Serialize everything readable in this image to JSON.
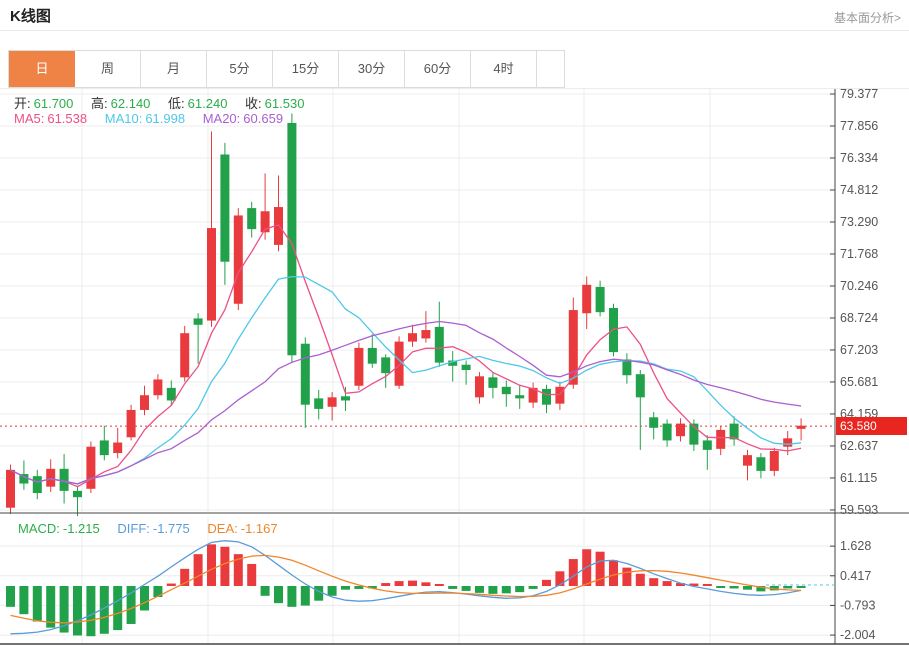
{
  "header": {
    "title": "K线图",
    "link": "基本面分析>"
  },
  "tabs": {
    "items": [
      "日",
      "周",
      "月",
      "5分",
      "15分",
      "30分",
      "60分",
      "4时"
    ],
    "active": "日"
  },
  "legend": {
    "ohlc": [
      {
        "label": "开:",
        "value": "61.700"
      },
      {
        "label": "高:",
        "value": "62.140"
      },
      {
        "label": "低:",
        "value": "61.240"
      },
      {
        "label": "收:",
        "value": "61.530"
      }
    ],
    "ma": [
      {
        "label": "MA5:",
        "value": "61.538"
      },
      {
        "label": "MA10:",
        "value": "61.998"
      },
      {
        "label": "MA20:",
        "value": "60.659"
      }
    ],
    "macd": [
      {
        "label": "MACD:",
        "value": "-1.215"
      },
      {
        "label": "DIFF:",
        "value": "-1.775"
      },
      {
        "label": "DEA:",
        "value": "-1.167"
      }
    ]
  },
  "current_price": {
    "value": "63.580",
    "numeric": 63.58
  },
  "colors": {
    "up": "#e93b3d",
    "down": "#21a24a",
    "ma5": "#ed4f86",
    "ma10": "#4ec8e9",
    "ma20": "#ab5fd0",
    "diff": "#5b9cd8",
    "dea": "#f0862c",
    "price_line": "#e23b3b",
    "badge_bg": "#e8261f",
    "grid": "#ececec",
    "axis": "#444444",
    "tick_text": "#555555",
    "ohlc_value": "#2bae4a",
    "ohlc_label": "#333333",
    "tab_active_bg": "#ef8346"
  },
  "axes": {
    "main_ticks": [
      79.377,
      77.856,
      76.334,
      74.812,
      73.29,
      71.768,
      70.246,
      68.724,
      67.203,
      65.681,
      64.159,
      62.637,
      61.115,
      59.593
    ],
    "macd_ticks": [
      1.628,
      0.417,
      -0.793,
      -2.004
    ]
  },
  "chart_data": {
    "type": "candlestick+macd",
    "title": "K线图",
    "panels": [
      "price",
      "macd"
    ],
    "grid": true,
    "price_line": 63.58,
    "ma_periods": [
      5,
      10,
      20
    ],
    "candles": {
      "open": [
        59.7,
        61.3,
        61.2,
        60.7,
        61.55,
        60.5,
        60.6,
        62.9,
        62.3,
        63.05,
        64.35,
        65.05,
        65.4,
        65.9,
        68.7,
        68.6,
        76.5,
        69.4,
        73.95,
        72.8,
        72.2,
        78.0,
        67.5,
        64.9,
        64.5,
        65.0,
        65.5,
        67.3,
        66.85,
        65.5,
        67.6,
        67.75,
        68.3,
        66.7,
        66.5,
        64.95,
        65.9,
        65.45,
        65.05,
        64.7,
        65.35,
        64.65,
        65.55,
        68.95,
        70.2,
        69.2,
        66.75,
        66.05,
        64.0,
        63.7,
        63.1,
        63.7,
        62.9,
        62.5,
        63.7,
        61.7,
        62.1,
        61.45,
        62.6,
        63.45
      ],
      "close": [
        61.5,
        60.85,
        60.4,
        61.55,
        60.5,
        60.2,
        62.6,
        62.2,
        62.8,
        64.35,
        65.05,
        65.8,
        64.8,
        68.0,
        68.4,
        73.0,
        71.4,
        73.6,
        72.95,
        73.8,
        74.0,
        66.95,
        64.6,
        64.4,
        64.95,
        64.8,
        67.3,
        66.55,
        66.1,
        67.6,
        68.0,
        68.15,
        66.6,
        66.45,
        66.25,
        65.95,
        65.4,
        65.1,
        64.9,
        65.4,
        64.6,
        65.45,
        69.1,
        70.3,
        69.0,
        67.1,
        66.0,
        64.95,
        63.5,
        62.9,
        63.7,
        62.7,
        62.45,
        63.4,
        62.95,
        62.2,
        61.45,
        62.4,
        63.0,
        63.6
      ],
      "high": [
        61.75,
        61.95,
        61.5,
        62.0,
        62.25,
        60.75,
        62.85,
        63.6,
        63.5,
        64.6,
        65.5,
        66.05,
        65.75,
        68.35,
        68.95,
        77.6,
        77.05,
        73.95,
        74.25,
        75.6,
        75.5,
        78.45,
        67.8,
        65.3,
        65.2,
        65.45,
        67.55,
        67.95,
        67.0,
        67.85,
        68.4,
        69.05,
        69.5,
        67.15,
        66.7,
        66.15,
        66.1,
        65.75,
        65.55,
        65.65,
        65.55,
        65.7,
        69.7,
        70.7,
        70.5,
        69.4,
        67.05,
        66.25,
        64.25,
        63.9,
        63.95,
        63.9,
        63.15,
        63.6,
        64.05,
        62.45,
        62.3,
        62.55,
        63.35,
        63.95
      ],
      "low": [
        59.4,
        60.55,
        60.1,
        60.45,
        59.9,
        59.3,
        60.4,
        61.95,
        62.05,
        62.9,
        64.1,
        64.85,
        64.55,
        65.7,
        66.55,
        68.3,
        70.3,
        69.1,
        72.55,
        72.45,
        71.9,
        66.6,
        63.5,
        63.9,
        63.85,
        64.3,
        65.3,
        66.35,
        65.4,
        65.35,
        67.35,
        67.55,
        66.4,
        65.7,
        65.55,
        64.65,
        64.9,
        64.5,
        64.4,
        64.45,
        64.2,
        64.35,
        65.35,
        68.2,
        68.8,
        66.9,
        65.6,
        62.45,
        62.95,
        62.6,
        62.85,
        62.4,
        61.5,
        62.2,
        62.65,
        61.0,
        61.1,
        61.2,
        62.2,
        62.9
      ]
    },
    "macd": {
      "hist": [
        -0.85,
        -1.15,
        -1.45,
        -1.7,
        -1.9,
        -2.02,
        -2.05,
        -1.95,
        -1.8,
        -1.55,
        -1.0,
        -0.45,
        0.1,
        0.7,
        1.3,
        1.7,
        1.6,
        1.3,
        0.9,
        -0.4,
        -0.7,
        -0.85,
        -0.8,
        -0.6,
        -0.4,
        -0.15,
        -0.12,
        -0.1,
        0.12,
        0.2,
        0.22,
        0.15,
        0.06,
        -0.12,
        -0.2,
        -0.28,
        -0.32,
        -0.3,
        -0.25,
        -0.12,
        0.25,
        0.6,
        1.1,
        1.5,
        1.4,
        1.05,
        0.75,
        0.5,
        0.32,
        0.2,
        0.12,
        0.1,
        0.08,
        -0.06,
        -0.1,
        -0.15,
        -0.22,
        -0.18,
        -0.1,
        -0.05
      ],
      "diff": [
        -1.95,
        -1.93,
        -1.88,
        -1.78,
        -1.62,
        -1.42,
        -1.18,
        -0.9,
        -0.6,
        -0.28,
        0.06,
        0.4,
        0.78,
        1.15,
        1.5,
        1.78,
        1.85,
        1.8,
        1.6,
        1.25,
        0.85,
        0.45,
        0.08,
        -0.22,
        -0.45,
        -0.58,
        -0.62,
        -0.6,
        -0.52,
        -0.42,
        -0.32,
        -0.25,
        -0.23,
        -0.27,
        -0.33,
        -0.4,
        -0.46,
        -0.5,
        -0.48,
        -0.4,
        -0.22,
        0.05,
        0.4,
        0.78,
        1.02,
        1.05,
        0.92,
        0.72,
        0.5,
        0.3,
        0.12,
        -0.02,
        -0.12,
        -0.22,
        -0.3,
        -0.36,
        -0.38,
        -0.35,
        -0.28,
        -0.18
      ],
      "dea": [
        -1.2,
        -1.32,
        -1.42,
        -1.48,
        -1.5,
        -1.47,
        -1.4,
        -1.28,
        -1.12,
        -0.92,
        -0.68,
        -0.42,
        -0.15,
        0.12,
        0.4,
        0.68,
        0.92,
        1.1,
        1.22,
        1.25,
        1.18,
        1.05,
        0.85,
        0.62,
        0.4,
        0.2,
        0.04,
        -0.1,
        -0.2,
        -0.27,
        -0.3,
        -0.3,
        -0.29,
        -0.29,
        -0.31,
        -0.34,
        -0.38,
        -0.41,
        -0.43,
        -0.42,
        -0.38,
        -0.28,
        -0.12,
        0.08,
        0.28,
        0.45,
        0.56,
        0.62,
        0.63,
        0.6,
        0.53,
        0.44,
        0.34,
        0.24,
        0.14,
        0.04,
        -0.05,
        -0.12,
        -0.16,
        -0.18
      ]
    }
  }
}
